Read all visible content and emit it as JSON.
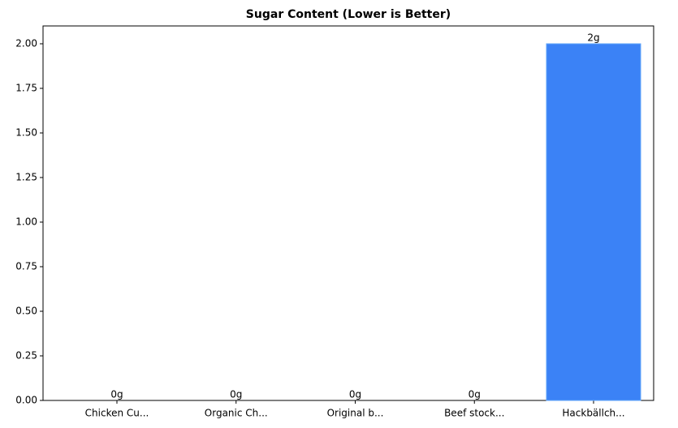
{
  "chart_data": {
    "type": "bar",
    "title": "Sugar Content (Lower is Better)",
    "categories": [
      "Chicken Cu...",
      "Organic Ch...",
      "Original b...",
      "Beef stock...",
      "Hackbällch..."
    ],
    "values": [
      0,
      0,
      0,
      0,
      2
    ],
    "value_labels": [
      "0g",
      "0g",
      "0g",
      "0g",
      "2g"
    ],
    "color": "#3b82f6",
    "ylim": [
      0,
      2.1
    ],
    "yticks": [
      {
        "value": 0,
        "label": "0.00"
      },
      {
        "value": 0.25,
        "label": "0.25"
      },
      {
        "value": 0.5,
        "label": "0.50"
      },
      {
        "value": 0.75,
        "label": "0.75"
      },
      {
        "value": 1,
        "label": "1.00"
      },
      {
        "value": 1.25,
        "label": "1.25"
      },
      {
        "value": 1.5,
        "label": "1.50"
      },
      {
        "value": 1.75,
        "label": "1.75"
      },
      {
        "value": 2,
        "label": "2.00"
      }
    ]
  }
}
